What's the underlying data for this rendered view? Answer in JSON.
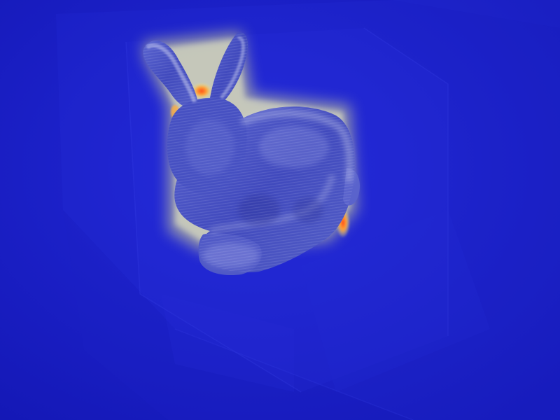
{
  "scene": {
    "subject": "bunny-model",
    "render_style": "heatmap-volume",
    "colors": {
      "background": "#1a1fd0",
      "background_dark": "#141ab8",
      "box_face": "#2a33e0",
      "box_edge": "#3a44ea",
      "bunny_body": "#4450c8",
      "bunny_shade": "#3a43b0",
      "bunny_highlight": "#c8ccf0",
      "heat_low": "#d8dcf2",
      "heat_mid": "#f0f08a",
      "heat_high": "#ff4a1a"
    }
  }
}
